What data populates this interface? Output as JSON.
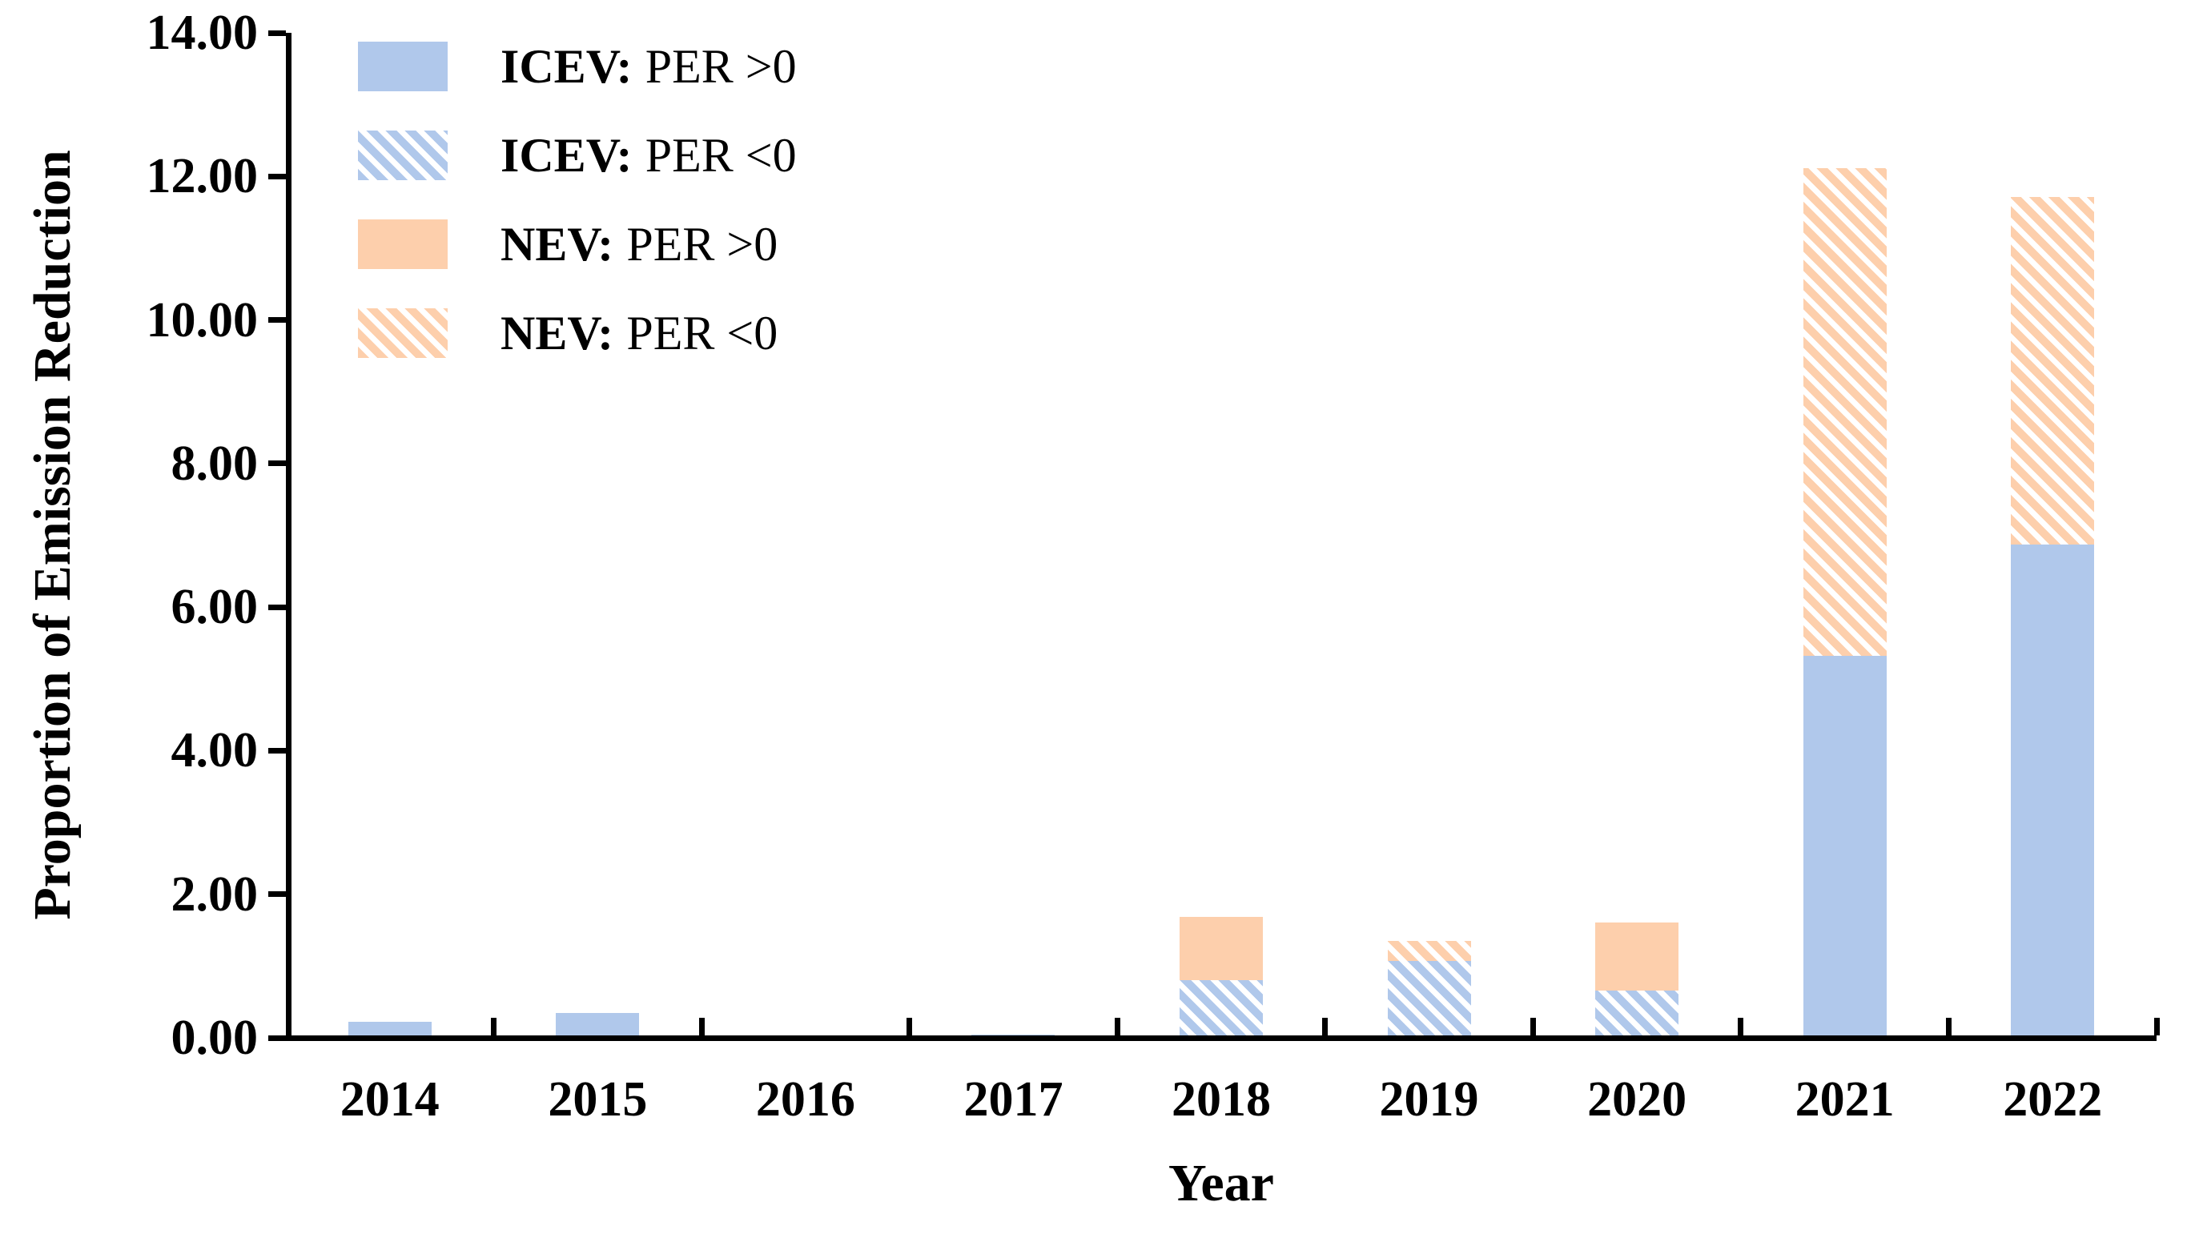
{
  "figure": {
    "kind": "stacked bar chart",
    "background": "#FFFFFF",
    "axis_color": "#000000"
  },
  "y_axis": {
    "title": "Proportion of Emission Reduction"
  },
  "x_axis": {
    "title": "Year"
  },
  "legend": {
    "items": [
      {
        "prefix": "ICEV:",
        "rest": "PER >0",
        "full": "ICEV: PER >0"
      },
      {
        "prefix": "ICEV:",
        "rest": "PER <0",
        "full": "ICEV: PER <0"
      },
      {
        "prefix": "NEV:",
        "rest": "PER >0",
        "full": "NEV: PER >0"
      },
      {
        "prefix": "NEV:",
        "rest": "PER <0",
        "full": "NEV: PER <0"
      }
    ]
  },
  "colors": {
    "icev_blue": "#B0C8EB",
    "nev_orange": "#FDCFAC",
    "axis": "#000000",
    "background": "#FFFFFF"
  },
  "chart_data": {
    "type": "bar",
    "stacked": true,
    "title": "",
    "xlabel": "Year",
    "ylabel": "Proportion of Emission Reduction",
    "categories": [
      "2014",
      "2015",
      "2016",
      "2017",
      "2018",
      "2019",
      "2020",
      "2021",
      "2022"
    ],
    "series": [
      {
        "name": "ICEV: PER >0",
        "pattern": "solid",
        "color": "#B0C8EB",
        "values": [
          0.22,
          0.35,
          0,
          0.05,
          0,
          0,
          0,
          5.32,
          6.87
        ]
      },
      {
        "name": "ICEV: PER <0",
        "pattern": "hatched",
        "color": "#B0C8EB",
        "values": [
          0,
          0,
          0,
          0,
          0.8,
          1.07,
          0.66,
          0,
          0
        ]
      },
      {
        "name": "NEV: PER >0",
        "pattern": "solid",
        "color": "#FDCFAC",
        "values": [
          0,
          0,
          0,
          0,
          0.88,
          0,
          0.95,
          0,
          0
        ]
      },
      {
        "name": "NEV: PER <0",
        "pattern": "hatched",
        "color": "#FDCFAC",
        "values": [
          0,
          0,
          0,
          0,
          0,
          0.28,
          0,
          6.79,
          4.84
        ]
      }
    ],
    "stack_totals": [
      0.22,
      0.35,
      0,
      0.05,
      1.68,
      1.35,
      1.61,
      12.11,
      11.71
    ],
    "stack_note": "segments stacked bottom-to-top in series order",
    "ylim": [
      0,
      14
    ],
    "yticks": [
      0,
      2,
      4,
      6,
      8,
      10,
      12,
      14
    ],
    "ytick_labels": [
      "0.00",
      "2.00",
      "4.00",
      "6.00",
      "8.00",
      "10.00",
      "12.00",
      "14.00"
    ],
    "grid": false,
    "legend_position": "upper-left-inside"
  }
}
